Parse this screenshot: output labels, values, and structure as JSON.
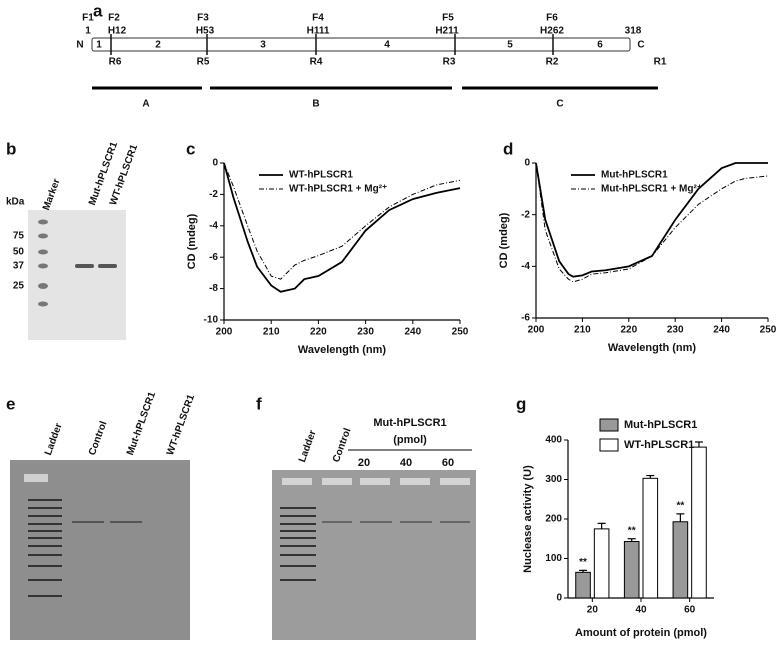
{
  "panel_labels": [
    "a",
    "b",
    "c",
    "d",
    "e",
    "f",
    "g"
  ],
  "diagram": {
    "n_term": "N",
    "c_term": "C",
    "top_labels": [
      "F1",
      "F2",
      "F3",
      "F4",
      "F5",
      "F6"
    ],
    "positions": [
      "1",
      "H12",
      "H53",
      "H111",
      "H211",
      "H262",
      "318"
    ],
    "segments": [
      "1",
      "2",
      "3",
      "4",
      "5",
      "6"
    ],
    "bottom_labels": [
      "R6",
      "R5",
      "R4",
      "R3",
      "R2",
      "R1"
    ],
    "regions": [
      "A",
      "B",
      "C"
    ]
  },
  "gel_b": {
    "axis_label": "kDa",
    "markers": [
      "75",
      "50",
      "37",
      "25"
    ],
    "lanes": [
      "Marker",
      "Mut-hPLSCR1",
      "WT-hPLSCR1"
    ]
  },
  "gel_e": {
    "lanes": [
      "Ladder",
      "Control",
      "Mut-hPLSCR1",
      "WT-hPLSCR1"
    ]
  },
  "gel_f": {
    "lanes": [
      "Ladder",
      "Control"
    ],
    "group": "Mut-hPLSCR1",
    "group_unit": "(pmol)",
    "group_lanes": [
      "20",
      "40",
      "60"
    ]
  },
  "chart_data": [
    {
      "type": "line",
      "xlabel": "Wavelength (nm)",
      "ylabel": "CD (mdeg)",
      "x": [
        200,
        202,
        205,
        207,
        210,
        212,
        215,
        217,
        220,
        225,
        230,
        235,
        240,
        245,
        250
      ],
      "series": [
        {
          "name": "WT-hPLSCR1",
          "color": "#000000",
          "dash": "solid",
          "values": [
            0,
            -2.2,
            -5.0,
            -6.6,
            -7.8,
            -8.2,
            -8.0,
            -7.4,
            -7.2,
            -6.3,
            -4.3,
            -3.0,
            -2.3,
            -1.9,
            -1.6
          ]
        },
        {
          "name": "WT-hPLSCR1 + Mg²⁺",
          "color": "#000000",
          "dash": "dashdot",
          "values": [
            0,
            -1.5,
            -4.0,
            -5.6,
            -7.2,
            -7.4,
            -6.5,
            -6.2,
            -5.9,
            -5.3,
            -4.0,
            -2.8,
            -2.0,
            -1.4,
            -1.1
          ]
        }
      ],
      "xlim": [
        200,
        250
      ],
      "xticks": [
        200,
        210,
        220,
        230,
        240,
        250
      ],
      "ylim": [
        -10,
        0
      ],
      "yticks": [
        -10,
        -8,
        -6,
        -4,
        -2,
        0
      ],
      "legend": "upper left"
    },
    {
      "type": "line",
      "xlabel": "Wavelength (nm)",
      "ylabel": "CD (mdeg)",
      "x": [
        200,
        202,
        205,
        207,
        208,
        210,
        212,
        215,
        220,
        225,
        230,
        235,
        240,
        243,
        245,
        250
      ],
      "series": [
        {
          "name": "Mut-hPLSCR1",
          "color": "#000000",
          "dash": "solid",
          "values": [
            0,
            -2.2,
            -3.8,
            -4.3,
            -4.4,
            -4.35,
            -4.2,
            -4.15,
            -4.0,
            -3.6,
            -2.2,
            -1.0,
            -0.2,
            0,
            0,
            0
          ]
        },
        {
          "name": "Mut-hPLSCR1 + Mg²⁺",
          "color": "#000000",
          "dash": "dashdot",
          "values": [
            0,
            -2.6,
            -4.1,
            -4.5,
            -4.6,
            -4.5,
            -4.3,
            -4.25,
            -4.1,
            -3.6,
            -2.5,
            -1.6,
            -1.0,
            -0.7,
            -0.6,
            -0.5
          ]
        }
      ],
      "xlim": [
        200,
        250
      ],
      "xticks": [
        200,
        210,
        220,
        230,
        240,
        250
      ],
      "ylim": [
        -6,
        0
      ],
      "yticks": [
        -6,
        -4,
        -2,
        0
      ],
      "legend": "upper left"
    },
    {
      "type": "bar",
      "xlabel": "Amount of protein (pmol)",
      "ylabel": "Nuclease activity (U)",
      "categories": [
        "20",
        "40",
        "60"
      ],
      "series": [
        {
          "name": "Mut-hPLSCR1",
          "color": "#999999",
          "values": [
            65,
            143,
            193
          ],
          "errors": [
            5,
            7,
            20
          ]
        },
        {
          "name": "WT-hPLSCR1",
          "color": "#ffffff",
          "values": [
            175,
            303,
            382
          ],
          "errors": [
            14,
            7,
            13
          ]
        }
      ],
      "annotations": [
        "**",
        "**",
        "**"
      ],
      "ylim": [
        0,
        400
      ],
      "yticks": [
        0,
        100,
        200,
        300,
        400
      ],
      "legend": "upper right"
    }
  ]
}
